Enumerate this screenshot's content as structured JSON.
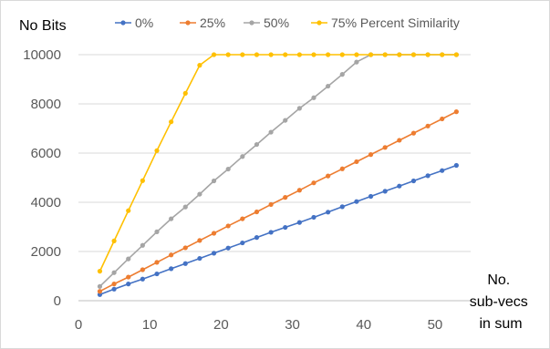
{
  "chart_data": {
    "type": "line",
    "title": "",
    "ylabel": "No Bits",
    "xlabel": "No. sub-vecs in sum",
    "xlabel_lines": [
      "No.",
      "sub-vecs",
      "in sum"
    ],
    "xlim": [
      0,
      55
    ],
    "ylim": [
      0,
      10000
    ],
    "xticks": [
      0,
      10,
      20,
      30,
      40,
      50
    ],
    "yticks": [
      0,
      2000,
      4000,
      6000,
      8000,
      10000
    ],
    "grid": "horizontal",
    "legend_position": "top",
    "x": [
      3,
      5,
      7,
      9,
      11,
      13,
      15,
      17,
      19,
      21,
      23,
      25,
      27,
      29,
      31,
      33,
      35,
      37,
      39,
      41,
      43,
      45,
      47,
      49,
      51,
      53
    ],
    "series": [
      {
        "name": "0%",
        "color": "#4472C4",
        "values": [
          250,
          470,
          680,
          880,
          1090,
          1300,
          1510,
          1720,
          1930,
          2140,
          2350,
          2570,
          2780,
          2980,
          3180,
          3390,
          3600,
          3820,
          4030,
          4240,
          4450,
          4660,
          4870,
          5080,
          5290,
          5500
        ]
      },
      {
        "name": "25%",
        "color": "#ED7D31",
        "values": [
          380,
          680,
          960,
          1260,
          1560,
          1860,
          2150,
          2450,
          2740,
          3040,
          3330,
          3610,
          3910,
          4200,
          4490,
          4790,
          5070,
          5360,
          5650,
          5940,
          6230,
          6520,
          6810,
          7100,
          7390,
          7680
        ]
      },
      {
        "name": "50%",
        "color": "#A5A5A5",
        "values": [
          580,
          1140,
          1700,
          2250,
          2800,
          3330,
          3810,
          4330,
          4870,
          5350,
          5860,
          6350,
          6850,
          7330,
          7820,
          8250,
          8720,
          9200,
          9700,
          10000,
          10000,
          10000,
          10000,
          10000,
          10000,
          10000
        ]
      },
      {
        "name": "75% Percent Similarity",
        "color": "#FFC000",
        "values": [
          1200,
          2430,
          3660,
          4880,
          6100,
          7270,
          8430,
          9570,
          10000,
          10000,
          10000,
          10000,
          10000,
          10000,
          10000,
          10000,
          10000,
          10000,
          10000,
          10000,
          10000,
          10000,
          10000,
          10000,
          10000,
          10000
        ]
      }
    ]
  }
}
